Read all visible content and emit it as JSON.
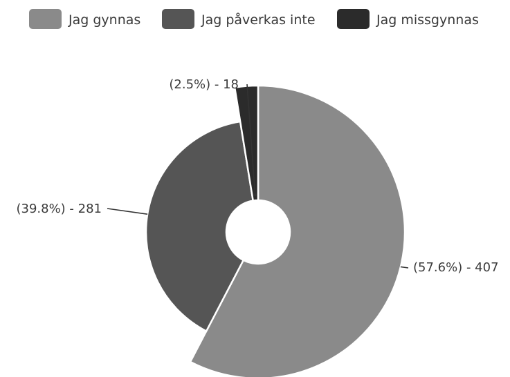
{
  "chart_data": {
    "type": "pie",
    "title": "",
    "legend_position": "top",
    "series": [
      {
        "name": "Jag gynnas",
        "value": 407,
        "percent": "57.6%",
        "color": "#8a8a8a",
        "label": "(57.6%) - 407"
      },
      {
        "name": "Jag påverkas inte",
        "value": 281,
        "percent": "39.8%",
        "color": "#555555",
        "label": "(39.8%) - 281"
      },
      {
        "name": "Jag missgynnas",
        "value": 18,
        "percent": "2.5%",
        "color": "#2b2b2b",
        "label": "(2.5%) - 18"
      }
    ]
  }
}
